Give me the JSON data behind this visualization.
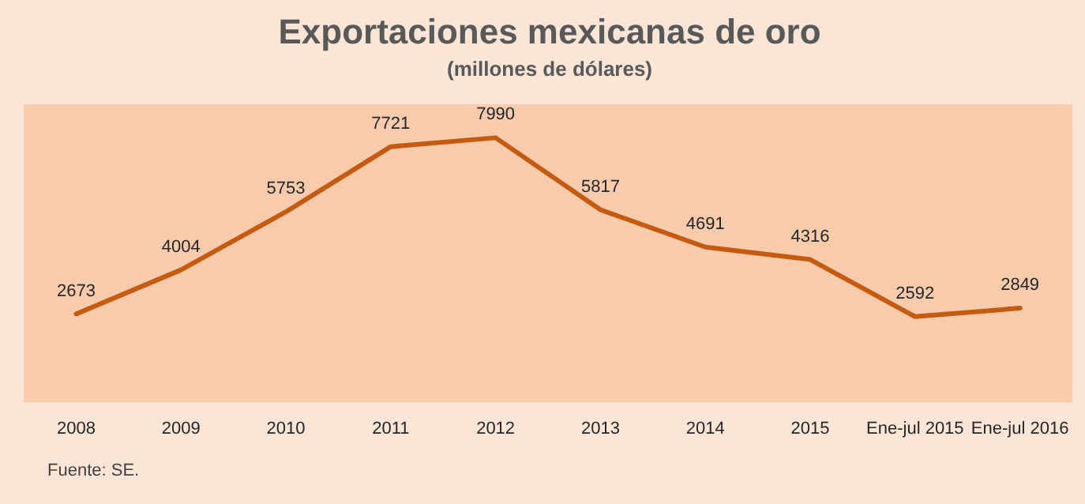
{
  "chart_data": {
    "type": "line",
    "title": "Exportaciones mexicanas de oro",
    "subtitle": "(millones de dólares)",
    "categories": [
      "2008",
      "2009",
      "2010",
      "2011",
      "2012",
      "2013",
      "2014",
      "2015",
      "Ene-jul 2015",
      "Ene-jul 2016"
    ],
    "series": [
      {
        "color": "#c55a11",
        "values": [
          2673,
          4004,
          5753,
          7721,
          7990,
          5817,
          4691,
          4316,
          2592,
          2849
        ]
      }
    ],
    "ylim": [
      0,
      9000
    ],
    "data_labels": true,
    "grid": false,
    "legend": false,
    "marker": "none",
    "line_style": "solid",
    "annotations": [
      "Fuente: SE."
    ]
  }
}
